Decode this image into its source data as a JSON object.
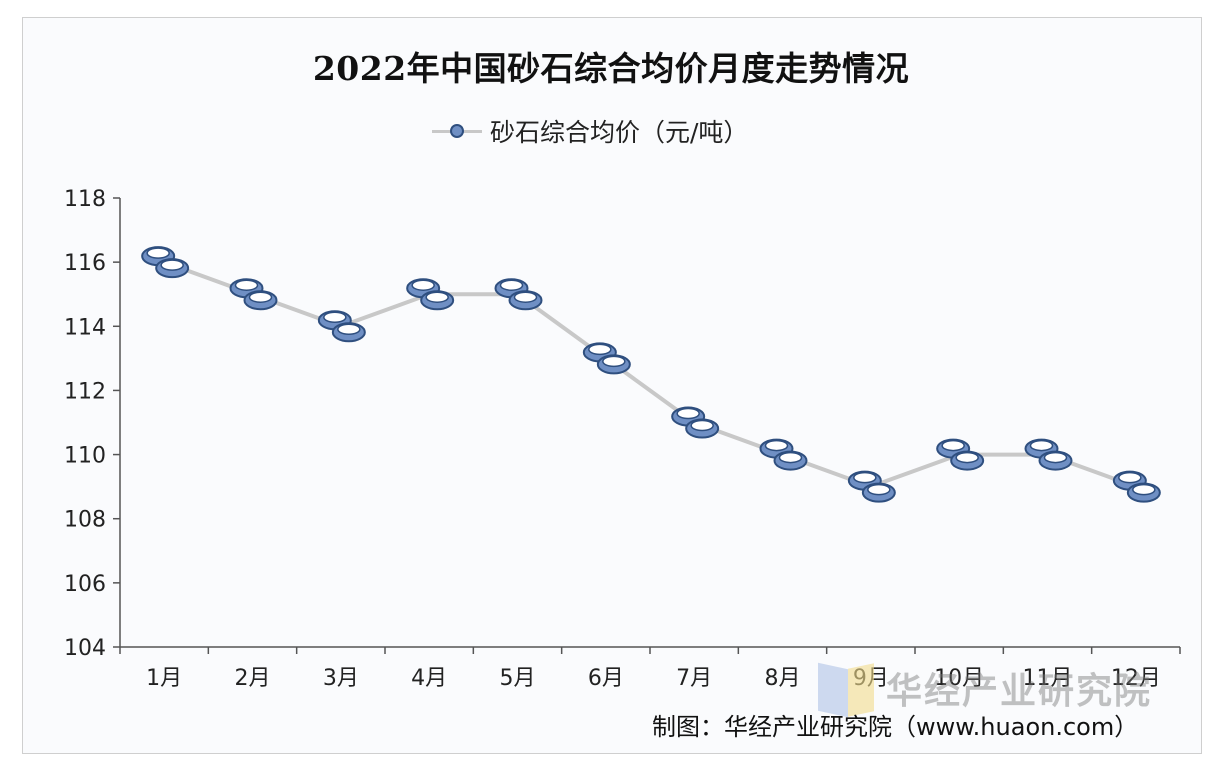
{
  "title": "2022年中国砂石综合均价月度走势情况",
  "legend": {
    "label": "砂石综合均价（元/吨）"
  },
  "source": "制图：华经产业研究院（www.huaon.com）",
  "watermark": "华经产业研究院",
  "colors": {
    "line": "#c8c8c8",
    "marker_fill": "#6f8fc4",
    "marker_stroke": "#2f4f7f",
    "axis": "#555555"
  },
  "chart_data": {
    "type": "line",
    "title": "2022年中国砂石综合均价月度走势情况",
    "categories": [
      "1月",
      "2月",
      "3月",
      "4月",
      "5月",
      "6月",
      "7月",
      "8月",
      "9月",
      "10月",
      "11月",
      "12月"
    ],
    "series": [
      {
        "name": "砂石综合均价（元/吨）",
        "values": [
          116,
          115,
          114,
          115,
          115,
          113,
          111,
          110,
          109,
          110,
          110,
          109
        ]
      }
    ],
    "y_ticks": [
      104,
      106,
      108,
      110,
      112,
      114,
      116,
      118
    ],
    "ylim": [
      104,
      118
    ],
    "grid": false,
    "legend_position": "top-center"
  }
}
